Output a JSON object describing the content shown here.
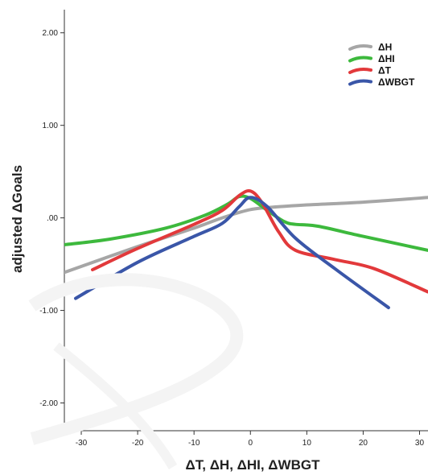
{
  "chart_data": {
    "type": "line",
    "xlabel": "ΔT, ΔH, ΔHI, ΔWBGT",
    "ylabel": "adjusted ΔGoals",
    "xlim": [
      -33,
      31.5
    ],
    "ylim": [
      -2.3,
      2.25
    ],
    "x_ticks": [
      -30,
      -20,
      -10,
      0,
      10,
      20,
      30
    ],
    "x_tick_labels": [
      "-30",
      "-20",
      "-10",
      "0",
      "10",
      "20",
      "30"
    ],
    "y_ticks": [
      2,
      1,
      0,
      -1,
      -2
    ],
    "y_tick_labels": [
      "2.00",
      "1.00",
      ".00",
      "-1.00",
      "-2.00"
    ],
    "legend": {
      "position": "top-right"
    },
    "series": [
      {
        "name": "ΔH",
        "color": "#a6a6a6",
        "points": [
          [
            -33,
            -0.59
          ],
          [
            -20,
            -0.31
          ],
          [
            -10,
            -0.11
          ],
          [
            -5,
            0.0
          ],
          [
            0,
            0.09
          ],
          [
            5,
            0.12
          ],
          [
            10,
            0.14
          ],
          [
            20,
            0.17
          ],
          [
            31.5,
            0.22
          ]
        ]
      },
      {
        "name": "ΔHI",
        "color": "#3db93d",
        "points": [
          [
            -33,
            -0.29
          ],
          [
            -25,
            -0.23
          ],
          [
            -15,
            -0.11
          ],
          [
            -8,
            0.03
          ],
          [
            -4,
            0.15
          ],
          [
            -2,
            0.23
          ],
          [
            0,
            0.21
          ],
          [
            3,
            0.08
          ],
          [
            6,
            -0.04
          ],
          [
            8,
            -0.07
          ],
          [
            12,
            -0.09
          ],
          [
            20,
            -0.2
          ],
          [
            31.5,
            -0.35
          ]
        ]
      },
      {
        "name": "ΔT",
        "color": "#e2393b",
        "points": [
          [
            -28,
            -0.56
          ],
          [
            -20,
            -0.33
          ],
          [
            -10,
            -0.07
          ],
          [
            -5,
            0.08
          ],
          [
            -2,
            0.24
          ],
          [
            0,
            0.29
          ],
          [
            2,
            0.17
          ],
          [
            5,
            -0.15
          ],
          [
            8,
            -0.35
          ],
          [
            15,
            -0.45
          ],
          [
            22,
            -0.55
          ],
          [
            31.5,
            -0.8
          ]
        ]
      },
      {
        "name": "ΔWBGT",
        "color": "#3a56a8",
        "points": [
          [
            -31,
            -0.87
          ],
          [
            -20,
            -0.48
          ],
          [
            -10,
            -0.2
          ],
          [
            -5,
            -0.06
          ],
          [
            -2,
            0.12
          ],
          [
            0,
            0.22
          ],
          [
            3,
            0.12
          ],
          [
            8,
            -0.22
          ],
          [
            15,
            -0.55
          ],
          [
            24.5,
            -0.97
          ]
        ]
      }
    ]
  }
}
